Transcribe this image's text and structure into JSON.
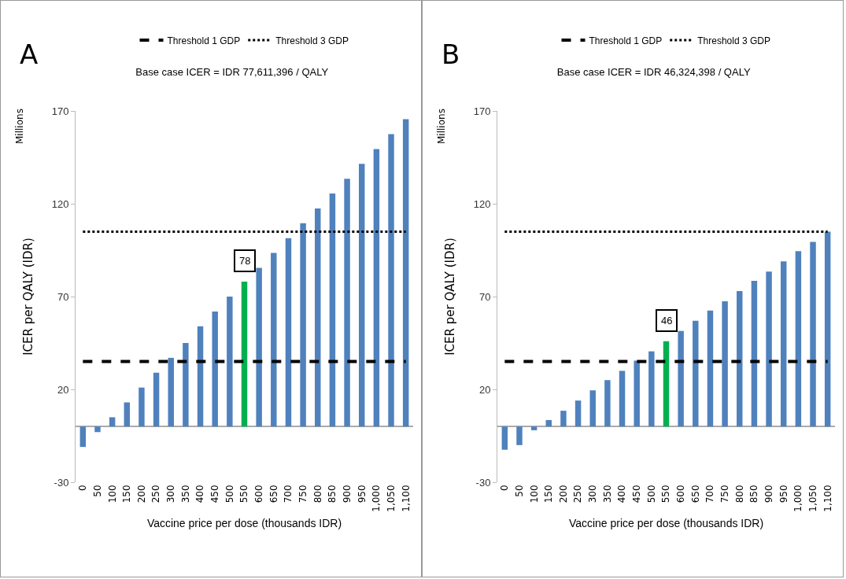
{
  "chart_data": [
    {
      "type": "bar",
      "title": "Base case ICER = IDR 77,611,396 / QALY",
      "xlabel": "Vaccine price per dose (thousands IDR)",
      "ylabel": "ICER per QALY (IDR)",
      "annotations": [
        "A",
        "Millions"
      ],
      "categories": [
        "0",
        "50",
        "100",
        "150",
        "200",
        "250",
        "300",
        "350",
        "400",
        "450",
        "500",
        "550",
        "600",
        "650",
        "700",
        "750",
        "800",
        "850",
        "900",
        "950",
        "1,000",
        "1,050",
        "1,100"
      ],
      "values": [
        -11,
        -3,
        5,
        13,
        21,
        29,
        37,
        45,
        54,
        62,
        70,
        78,
        85.5,
        93.5,
        101.5,
        109.5,
        117.5,
        125.5,
        133.5,
        141.5,
        149.5,
        157.5,
        165.5
      ],
      "colors": [
        "#4f81bd",
        "#4f81bd",
        "#4f81bd",
        "#4f81bd",
        "#4f81bd",
        "#4f81bd",
        "#4f81bd",
        "#4f81bd",
        "#4f81bd",
        "#4f81bd",
        "#4f81bd",
        "#00b050",
        "#4f81bd",
        "#4f81bd",
        "#4f81bd",
        "#4f81bd",
        "#4f81bd",
        "#4f81bd",
        "#4f81bd",
        "#4f81bd",
        "#4f81bd",
        "#4f81bd",
        "#4f81bd"
      ],
      "value_labels": [
        null,
        null,
        null,
        null,
        null,
        null,
        null,
        null,
        null,
        null,
        null,
        "78",
        null,
        null,
        null,
        null,
        null,
        null,
        null,
        null,
        null,
        null,
        null
      ],
      "ylim": [
        -30,
        170
      ],
      "yticks": [
        -30,
        20,
        70,
        120,
        170
      ],
      "grid": false,
      "legend": "top",
      "ref_lines": [
        {
          "axis": "y",
          "value": 35,
          "label": "Threshold 1 GDP",
          "color": "#000000",
          "line_style": "dashed"
        },
        {
          "axis": "y",
          "value": 105,
          "label": "Threshold 3 GDP",
          "color": "#000000",
          "line_style": "dotted"
        }
      ]
    },
    {
      "type": "bar",
      "title": "Base case ICER = IDR 46,324,398 / QALY",
      "xlabel": "Vaccine price per dose (thousands IDR)",
      "ylabel": "ICER per QALY (IDR)",
      "annotations": [
        "B",
        "Millions"
      ],
      "categories": [
        "0",
        "50",
        "100",
        "150",
        "200",
        "250",
        "300",
        "350",
        "400",
        "450",
        "500",
        "550",
        "600",
        "650",
        "700",
        "750",
        "800",
        "850",
        "900",
        "950",
        "1,000",
        "1,050",
        "1,100"
      ],
      "values": [
        -12.5,
        -10,
        -2,
        3.5,
        8.5,
        14,
        19.5,
        25,
        30,
        35.5,
        40.5,
        46,
        51.5,
        57,
        62.5,
        67.5,
        73,
        78.5,
        83.5,
        89,
        94.5,
        99.5,
        105
      ],
      "colors": [
        "#4f81bd",
        "#4f81bd",
        "#4f81bd",
        "#4f81bd",
        "#4f81bd",
        "#4f81bd",
        "#4f81bd",
        "#4f81bd",
        "#4f81bd",
        "#4f81bd",
        "#4f81bd",
        "#00b050",
        "#4f81bd",
        "#4f81bd",
        "#4f81bd",
        "#4f81bd",
        "#4f81bd",
        "#4f81bd",
        "#4f81bd",
        "#4f81bd",
        "#4f81bd",
        "#4f81bd",
        "#4f81bd"
      ],
      "value_labels": [
        null,
        null,
        null,
        null,
        null,
        null,
        null,
        null,
        null,
        null,
        null,
        "46",
        null,
        null,
        null,
        null,
        null,
        null,
        null,
        null,
        null,
        null,
        null
      ],
      "ylim": [
        -30,
        170
      ],
      "yticks": [
        -30,
        20,
        70,
        120,
        170
      ],
      "grid": false,
      "legend": "top",
      "ref_lines": [
        {
          "axis": "y",
          "value": 35,
          "label": "Threshold 1 GDP",
          "color": "#000000",
          "line_style": "dashed"
        },
        {
          "axis": "y",
          "value": 105,
          "label": "Threshold 3 GDP",
          "color": "#000000",
          "line_style": "dotted"
        }
      ]
    }
  ]
}
